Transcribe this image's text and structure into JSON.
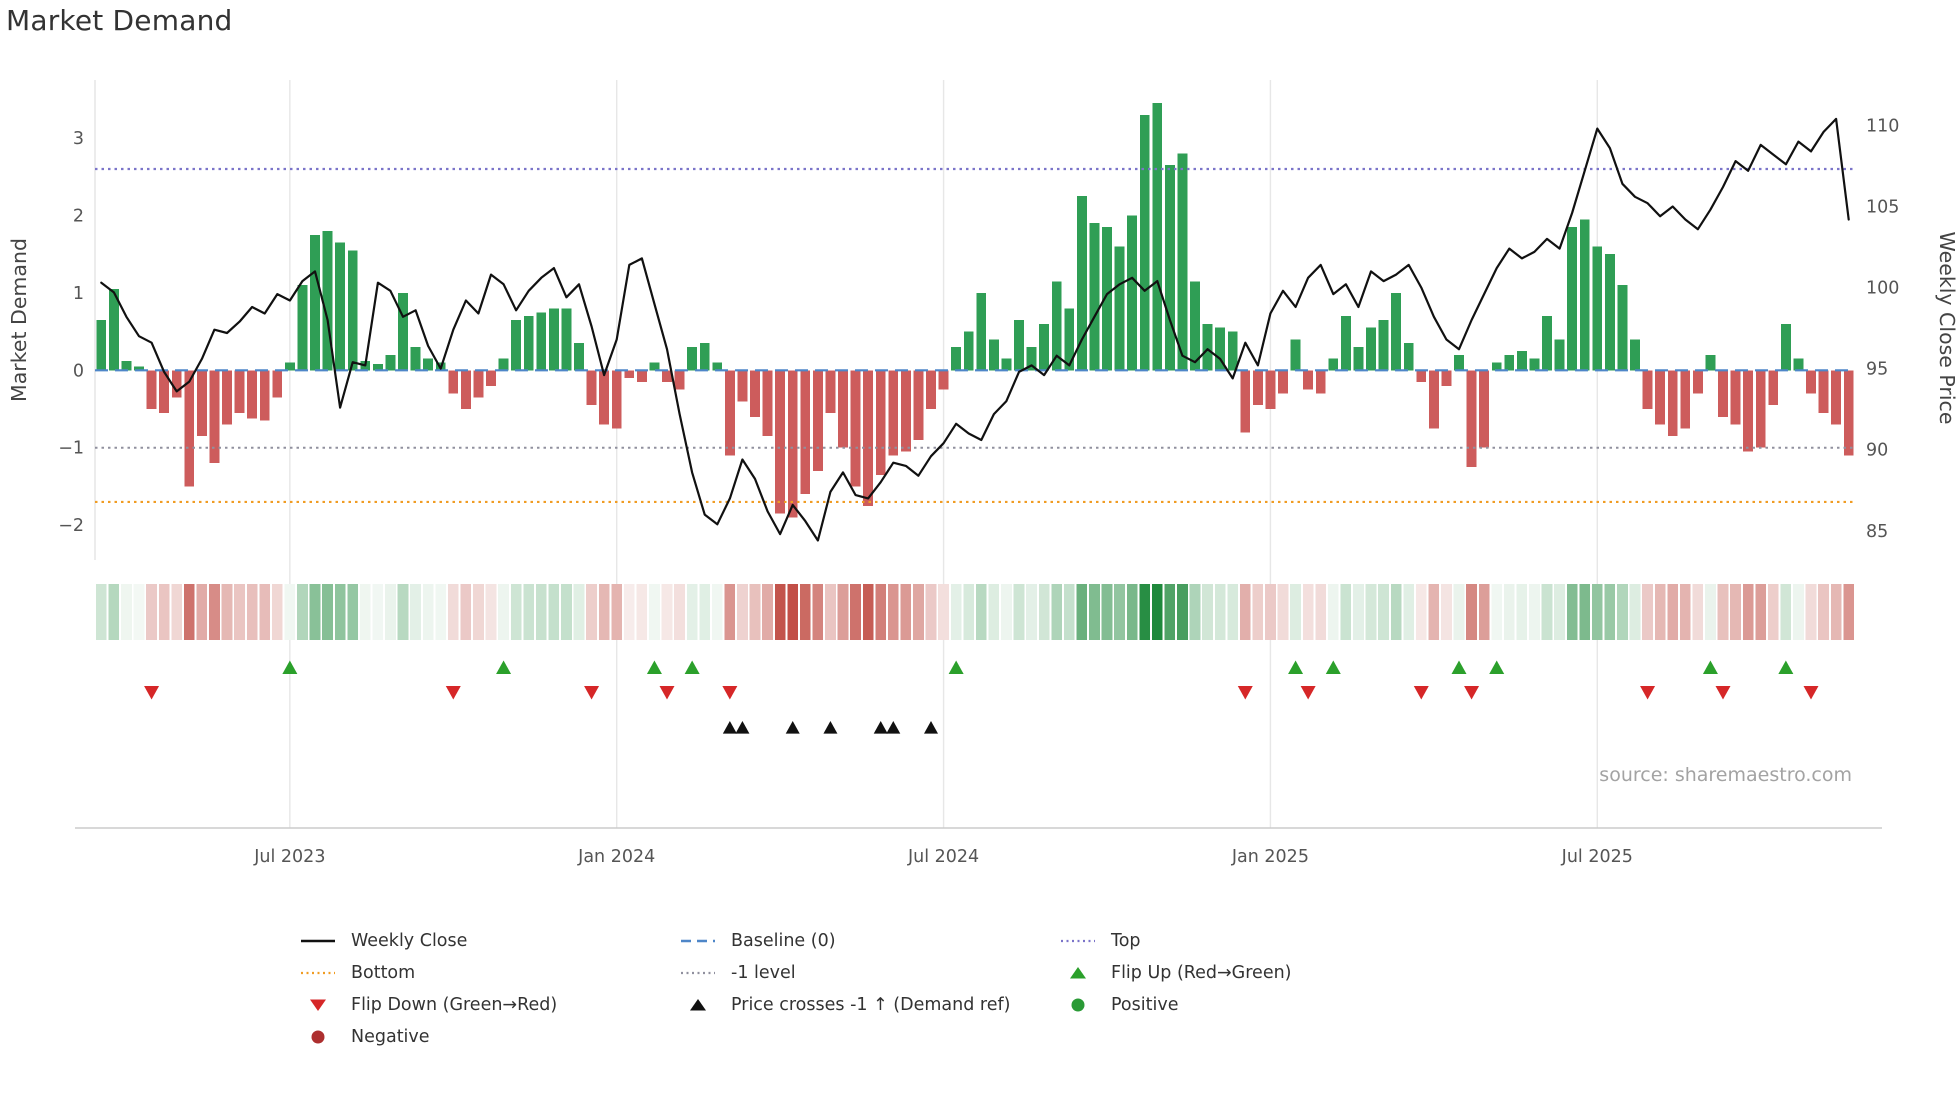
{
  "title": "Market Demand",
  "ylabel_left": "Market Demand",
  "ylabel_right": "Weekly Close Price",
  "source": "source: sharemaestro.com",
  "colors": {
    "bar_pos": "#2f9e55",
    "bar_neg": "#cd5c5c",
    "price_line": "#111111",
    "baseline": "#4e86c8",
    "top": "#7b74c9",
    "minus_one": "#90909e",
    "bottom": "#f09c23",
    "flip_up": "#2ba02b",
    "flip_down": "#d62728",
    "cross": "#111111",
    "positive_dot": "#2a9a36",
    "negative_dot": "#ad2f2f",
    "grid": "#e7e7e7",
    "axis": "#cccccc",
    "tick_text": "#555555",
    "axis_title_text": "#444444"
  },
  "legend": {
    "weekly_close": "Weekly Close",
    "baseline": "Baseline (0)",
    "top": "Top",
    "bottom": "Bottom",
    "minus_one": "-1 level",
    "flip_up": "Flip Up (Red→Green)",
    "flip_down": "Flip Down (Green→Red)",
    "cross": "Price crosses -1 ↑ (Demand ref)",
    "positive": "Positive",
    "negative": "Negative"
  },
  "chart_data": {
    "type": "bar+line",
    "title": "Market Demand",
    "x_tick_labels": [
      "Jul 2023",
      "Jan 2024",
      "Jul 2024",
      "Jan 2025",
      "Jul 2025"
    ],
    "x_tick_weeks": [
      15,
      41,
      67,
      93,
      119
    ],
    "weeks_total": 140,
    "demand_ticks": [
      -2,
      -1,
      0,
      1,
      2,
      3
    ],
    "price_ticks": [
      85,
      90,
      95,
      100,
      105,
      110
    ],
    "demand_ylim": [
      -2.45,
      3.75
    ],
    "price_ylim": [
      83.2,
      112.8
    ],
    "baseline_level": 0,
    "top_level": 2.6,
    "minus_one_level": -1,
    "bottom_level": -1.7,
    "demand": [
      0.65,
      1.05,
      0.12,
      0.05,
      -0.5,
      -0.55,
      -0.35,
      -1.5,
      -0.85,
      -1.2,
      -0.7,
      -0.55,
      -0.62,
      -0.65,
      -0.35,
      0.1,
      1.1,
      1.75,
      1.8,
      1.65,
      1.55,
      0.12,
      0.08,
      0.2,
      1.0,
      0.3,
      0.15,
      0.1,
      -0.3,
      -0.5,
      -0.35,
      -0.2,
      0.15,
      0.65,
      0.7,
      0.75,
      0.8,
      0.8,
      0.35,
      -0.45,
      -0.7,
      -0.75,
      -0.1,
      -0.15,
      0.1,
      -0.15,
      -0.25,
      0.3,
      0.35,
      0.1,
      -1.1,
      -0.4,
      -0.6,
      -0.85,
      -1.85,
      -1.9,
      -1.6,
      -1.3,
      -0.55,
      -1.0,
      -1.5,
      -1.75,
      -1.35,
      -1.1,
      -1.05,
      -0.9,
      -0.5,
      -0.25,
      0.3,
      0.5,
      1.0,
      0.4,
      0.15,
      0.65,
      0.3,
      0.6,
      1.15,
      0.8,
      2.25,
      1.9,
      1.85,
      1.6,
      2.0,
      3.3,
      3.45,
      2.65,
      2.8,
      1.15,
      0.6,
      0.55,
      0.5,
      -0.8,
      -0.45,
      -0.5,
      -0.3,
      0.4,
      -0.25,
      -0.3,
      0.15,
      0.7,
      0.3,
      0.55,
      0.65,
      1.0,
      0.35,
      -0.15,
      -0.75,
      -0.2,
      0.2,
      -1.25,
      -1.0,
      0.1,
      0.2,
      0.25,
      0.15,
      0.7,
      0.4,
      1.85,
      1.95,
      1.6,
      1.5,
      1.1,
      0.4,
      -0.5,
      -0.7,
      -0.85,
      -0.75,
      -0.3,
      0.2,
      -0.6,
      -0.7,
      -1.05,
      -1.0,
      -0.45,
      0.6,
      0.15,
      -0.3,
      -0.55,
      -0.7,
      -1.1
    ],
    "price": [
      100.3,
      99.7,
      98.2,
      97.0,
      96.6,
      94.8,
      93.6,
      94.2,
      95.6,
      97.4,
      97.2,
      97.9,
      98.8,
      98.4,
      99.6,
      99.2,
      100.4,
      101.0,
      98.0,
      92.6,
      95.4,
      95.2,
      100.3,
      99.8,
      98.2,
      98.6,
      96.4,
      95.0,
      97.4,
      99.2,
      98.4,
      100.8,
      100.2,
      98.6,
      99.8,
      100.6,
      101.2,
      99.4,
      100.2,
      97.6,
      94.6,
      96.8,
      101.4,
      101.8,
      99.0,
      96.2,
      92.2,
      88.6,
      86.0,
      85.4,
      87.0,
      89.4,
      88.2,
      86.2,
      84.8,
      86.6,
      85.6,
      84.4,
      87.4,
      88.6,
      87.2,
      87.0,
      88.0,
      89.2,
      89.0,
      88.4,
      89.6,
      90.4,
      91.6,
      91.0,
      90.6,
      92.2,
      93.0,
      94.8,
      95.2,
      94.6,
      95.8,
      95.2,
      96.8,
      98.2,
      99.6,
      100.2,
      100.6,
      99.8,
      100.4,
      98.0,
      95.8,
      95.4,
      96.2,
      95.6,
      94.4,
      96.6,
      95.2,
      98.4,
      99.8,
      98.8,
      100.6,
      101.4,
      99.6,
      100.2,
      98.8,
      101.0,
      100.4,
      100.8,
      101.4,
      100.0,
      98.2,
      96.8,
      96.2,
      98.0,
      99.6,
      101.2,
      102.4,
      101.8,
      102.2,
      103.0,
      102.4,
      104.6,
      107.2,
      109.8,
      108.6,
      106.4,
      105.6,
      105.2,
      104.4,
      105.0,
      104.2,
      103.6,
      104.8,
      106.2,
      107.8,
      107.2,
      108.8,
      108.2,
      107.6,
      109.0,
      108.4,
      109.6,
      110.4,
      104.2
    ],
    "flip_up_weeks": [
      15,
      32,
      44,
      47,
      68,
      95,
      98,
      108,
      111,
      128,
      134
    ],
    "flip_down_weeks": [
      4,
      28,
      39,
      45,
      50,
      91,
      96,
      105,
      109,
      123,
      129,
      136
    ],
    "price_cross_weeks": [
      50,
      51,
      55,
      58,
      62,
      63,
      66
    ],
    "legend_position": "bottom",
    "grid": "vertical-only"
  }
}
